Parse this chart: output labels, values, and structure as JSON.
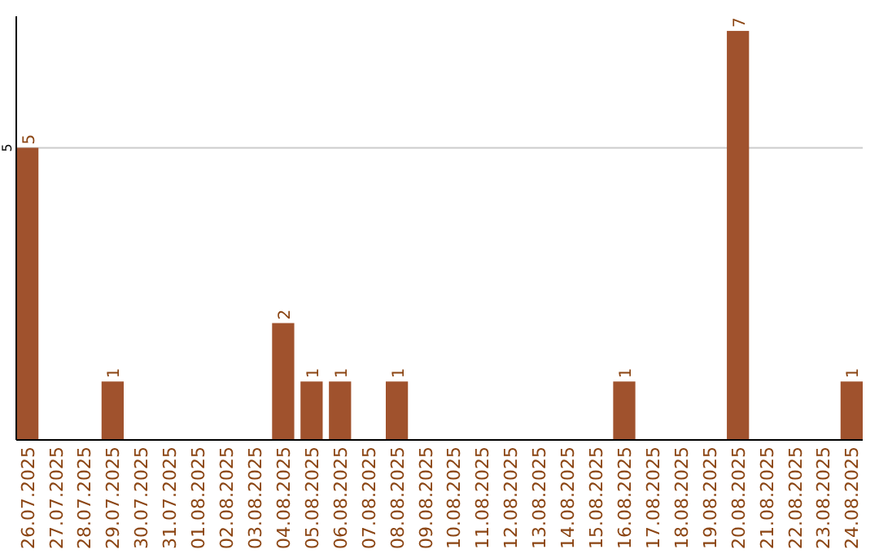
{
  "chart_data": {
    "type": "bar",
    "categories": [
      "26.07.2025",
      "27.07.2025",
      "28.07.2025",
      "29.07.2025",
      "30.07.2025",
      "31.07.2025",
      "01.08.2025",
      "02.08.2025",
      "03.08.2025",
      "04.08.2025",
      "05.08.2025",
      "06.08.2025",
      "07.08.2025",
      "08.08.2025",
      "09.08.2025",
      "10.08.2025",
      "11.08.2025",
      "12.08.2025",
      "13.08.2025",
      "14.08.2025",
      "15.08.2025",
      "16.08.2025",
      "17.08.2025",
      "18.08.2025",
      "19.08.2025",
      "20.08.2025",
      "21.08.2025",
      "22.08.2025",
      "23.08.2025",
      "24.08.2025"
    ],
    "values": [
      5,
      0,
      0,
      1,
      0,
      0,
      0,
      0,
      0,
      2,
      1,
      1,
      0,
      1,
      0,
      0,
      0,
      0,
      0,
      0,
      0,
      1,
      0,
      0,
      0,
      7,
      0,
      0,
      0,
      1
    ],
    "value_labels": [
      "5",
      null,
      null,
      "1",
      null,
      null,
      null,
      null,
      null,
      "2",
      "1",
      "1",
      null,
      "1",
      null,
      null,
      null,
      null,
      null,
      null,
      null,
      "1",
      null,
      null,
      null,
      "7",
      null,
      null,
      null,
      "1"
    ],
    "color": "#a0522d",
    "ylim": [
      0,
      7.25
    ],
    "yticks": [
      5
    ],
    "grid": "y"
  }
}
